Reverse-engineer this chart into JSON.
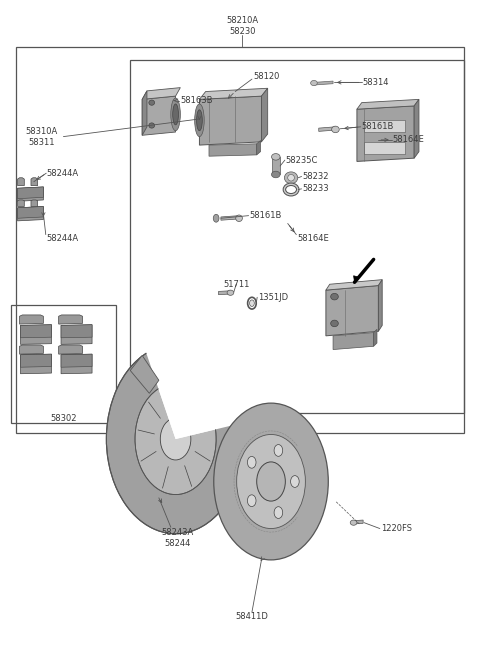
{
  "bg_color": "#ffffff",
  "fig_width": 4.8,
  "fig_height": 6.56,
  "dpi": 100,
  "label_color": "#3a3a3a",
  "line_color": "#555555",
  "font_size": 6.0,
  "boxes": {
    "outer": [
      0.03,
      0.34,
      0.97,
      0.93
    ],
    "inner": [
      0.27,
      0.37,
      0.97,
      0.91
    ],
    "small": [
      0.02,
      0.355,
      0.24,
      0.535
    ]
  },
  "labels": {
    "58210A\n58230": [
      0.505,
      0.965,
      "center"
    ],
    "58120": [
      0.555,
      0.885,
      "center"
    ],
    "58314": [
      0.76,
      0.875,
      "left"
    ],
    "58163B": [
      0.375,
      0.845,
      "left"
    ],
    "58310A\n58311": [
      0.085,
      0.79,
      "center"
    ],
    "58161B_1": [
      0.755,
      0.805,
      "left"
    ],
    "58164E_1": [
      0.82,
      0.785,
      "left"
    ],
    "58235C": [
      0.595,
      0.755,
      "left"
    ],
    "58232": [
      0.63,
      0.73,
      "left"
    ],
    "58233": [
      0.63,
      0.712,
      "left"
    ],
    "58244A_1": [
      0.095,
      0.735,
      "left"
    ],
    "58161B_2": [
      0.52,
      0.67,
      "left"
    ],
    "58244A_2": [
      0.095,
      0.635,
      "left"
    ],
    "58164E_2": [
      0.62,
      0.635,
      "left"
    ],
    "58302": [
      0.13,
      0.34,
      "center"
    ],
    "51711": [
      0.495,
      0.565,
      "center"
    ],
    "1351JD": [
      0.535,
      0.545,
      "left"
    ],
    "58243A\n58244": [
      0.37,
      0.175,
      "center"
    ],
    "1220FS": [
      0.795,
      0.19,
      "left"
    ],
    "58411D": [
      0.525,
      0.055,
      "center"
    ]
  }
}
